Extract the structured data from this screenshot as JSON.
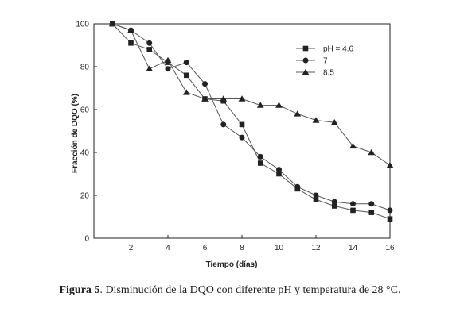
{
  "chart_data": {
    "type": "line",
    "xlabel": "Tiempo (días)",
    "ylabel": "Fracción de DQO (%)",
    "xlim": [
      0,
      16
    ],
    "ylim": [
      0,
      100
    ],
    "xticks": [
      2,
      4,
      6,
      8,
      10,
      12,
      14,
      16
    ],
    "yticks": [
      0,
      20,
      40,
      60,
      80,
      100
    ],
    "grid": false,
    "legend_position": "top-right",
    "series": [
      {
        "name": "pH = 4.6",
        "marker": "square",
        "x": [
          1,
          2,
          3,
          4,
          5,
          6,
          7,
          8,
          9,
          10,
          11,
          12,
          13,
          14,
          15,
          16
        ],
        "y": [
          100,
          91,
          88,
          82,
          76,
          65,
          64,
          53,
          35,
          30,
          23,
          18,
          15,
          13,
          12,
          9
        ]
      },
      {
        "name": "7",
        "marker": "circle",
        "x": [
          1,
          2,
          3,
          4,
          5,
          6,
          7,
          8,
          9,
          10,
          11,
          12,
          13,
          14,
          15,
          16
        ],
        "y": [
          100,
          97,
          91,
          79,
          82,
          72,
          53,
          47,
          38,
          32,
          24,
          20,
          17,
          16,
          16,
          13
        ]
      },
      {
        "name": "8.5",
        "marker": "triangle",
        "x": [
          1,
          2,
          3,
          4,
          5,
          6,
          7,
          8,
          9,
          10,
          11,
          12,
          13,
          14,
          15,
          16
        ],
        "y": [
          100,
          97,
          79,
          83,
          68,
          65,
          65,
          65,
          62,
          62,
          58,
          55,
          54,
          43,
          40,
          34
        ]
      }
    ]
  },
  "caption": {
    "label": "Figura 5",
    "text": ". Disminución de la DQO con diferente pH y temperatura de 28 °C."
  },
  "colors": {
    "ink": "#222222",
    "line": "#555555"
  }
}
